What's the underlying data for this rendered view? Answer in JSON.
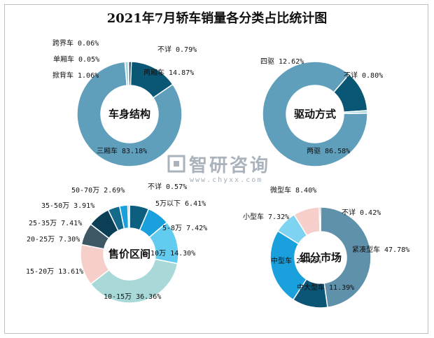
{
  "title": "2021年7月轿车销量各分类占比统计图",
  "watermark": {
    "text": "智研咨询",
    "url": "www.chyxx.com"
  },
  "chart_data": [
    {
      "type": "pie",
      "donut": true,
      "center_label": "车身结构",
      "slices": [
        {
          "label": "两厢车 14.87%",
          "value": 14.87,
          "color": "#0a5775"
        },
        {
          "label": "三厢车 83.18%",
          "value": 83.18,
          "color": "#609fbb"
        },
        {
          "label": "掀背车 1.06%",
          "value": 1.06,
          "color": "#a9d6df"
        },
        {
          "label": "单厢车 0.05%",
          "value": 0.05,
          "color": "#2a4b5c"
        },
        {
          "label": "跨界车 0.06%",
          "value": 0.06,
          "color": "#1c6e8a"
        },
        {
          "label": "不详 0.79%",
          "value": 0.79,
          "color": "#153c52"
        }
      ]
    },
    {
      "type": "pie",
      "donut": true,
      "center_label": "驱动方式",
      "slices": [
        {
          "label": "两驱 86.58%",
          "value": 86.58,
          "color": "#609fbb"
        },
        {
          "label": "四驱 12.62%",
          "value": 12.62,
          "color": "#0a5775"
        },
        {
          "label": "不详 0.80%",
          "value": 0.8,
          "color": "#a9d6df"
        }
      ]
    },
    {
      "type": "pie",
      "donut": true,
      "center_label": "售价区间",
      "slices": [
        {
          "label": "5万以下 6.41%",
          "value": 6.41,
          "color": "#0d5f7f"
        },
        {
          "label": "5-8万 7.42%",
          "value": 7.42,
          "color": "#1aa0dc"
        },
        {
          "label": "8-10万 14.30%",
          "value": 14.3,
          "color": "#62cbf0"
        },
        {
          "label": "10-15万 36.36%",
          "value": 36.36,
          "color": "#a8d9d8"
        },
        {
          "label": "15-20万 13.61%",
          "value": 13.61,
          "color": "#f7cfca"
        },
        {
          "label": "20-25万 7.30%",
          "value": 7.3,
          "color": "#3e5965"
        },
        {
          "label": "25-35万 7.41%",
          "value": 7.41,
          "color": "#0b3f56"
        },
        {
          "label": "35-50万 3.91%",
          "value": 3.91,
          "color": "#136a8a"
        },
        {
          "label": "50-70万 2.69%",
          "value": 2.69,
          "color": "#1aa0dc"
        },
        {
          "label": "不详 0.57%",
          "value": 0.57,
          "color": "#9fd6ea"
        }
      ]
    },
    {
      "type": "pie",
      "donut": true,
      "center_label": "细分市场",
      "slices": [
        {
          "label": "紧凑型车 47.78%",
          "value": 47.78,
          "color": "#5f91ab"
        },
        {
          "label": "中大型车 11.39%",
          "value": 11.39,
          "color": "#0b5576"
        },
        {
          "label": "中型车 24.68%",
          "value": 24.68,
          "color": "#1aa0dc"
        },
        {
          "label": "小型车 7.32%",
          "value": 7.32,
          "color": "#7fd3f2"
        },
        {
          "label": "微型车 8.40%",
          "value": 8.4,
          "color": "#f7cfca"
        },
        {
          "label": "不详 0.42%",
          "value": 0.42,
          "color": "#2a4b5c"
        }
      ]
    }
  ]
}
